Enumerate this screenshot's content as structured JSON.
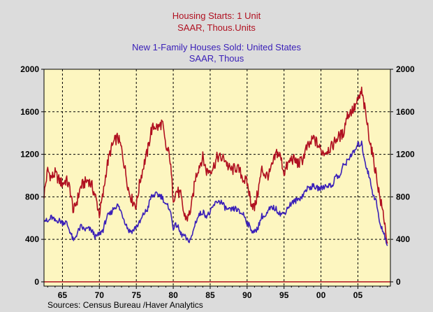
{
  "chart_data": {
    "type": "line",
    "titles": [
      {
        "text": "Housing Starts: 1 Unit",
        "color": "#b01020"
      },
      {
        "text": "SAAR, Thous.Units",
        "color": "#b01020"
      },
      {
        "text": "New 1-Family Houses Sold: United States",
        "color": "#3a20b8"
      },
      {
        "text": "SAAR, Thous",
        "color": "#3a20b8"
      }
    ],
    "xlabel": "",
    "ylabel": "",
    "xlim": [
      1962.5,
      2009.4
    ],
    "ylim": [
      -40,
      2000
    ],
    "x_ticks": [
      "65",
      "70",
      "75",
      "80",
      "85",
      "90",
      "95",
      "00",
      "05"
    ],
    "x_tick_values": [
      1965,
      1970,
      1975,
      1980,
      1985,
      1990,
      1995,
      2000,
      2005
    ],
    "y_ticks_left": [
      "0",
      "400",
      "800",
      "1200",
      "1600",
      "2000"
    ],
    "y_ticks_right": [
      "0",
      "400",
      "800",
      "1200",
      "1600",
      "2000"
    ],
    "y_tick_values": [
      0,
      400,
      800,
      1200,
      1600,
      2000
    ],
    "grid": true,
    "plot_background": "#fdf6c0",
    "series": [
      {
        "color": "#b01020",
        "points": [
          [
            1962.5,
            820
          ],
          [
            1963,
            1050
          ],
          [
            1963.5,
            980
          ],
          [
            1964,
            1020
          ],
          [
            1964.5,
            960
          ],
          [
            1965,
            920
          ],
          [
            1965.5,
            960
          ],
          [
            1966,
            880
          ],
          [
            1966.5,
            660
          ],
          [
            1967,
            770
          ],
          [
            1967.5,
            900
          ],
          [
            1968,
            930
          ],
          [
            1968.5,
            960
          ],
          [
            1969,
            900
          ],
          [
            1969.5,
            790
          ],
          [
            1970,
            640
          ],
          [
            1970.5,
            820
          ],
          [
            1971,
            1080
          ],
          [
            1971.5,
            1230
          ],
          [
            1972,
            1320
          ],
          [
            1972.5,
            1360
          ],
          [
            1973,
            1250
          ],
          [
            1973.5,
            1050
          ],
          [
            1974,
            850
          ],
          [
            1974.5,
            760
          ],
          [
            1975,
            720
          ],
          [
            1975.5,
            950
          ],
          [
            1976,
            1100
          ],
          [
            1976.5,
            1220
          ],
          [
            1977,
            1420
          ],
          [
            1977.5,
            1470
          ],
          [
            1978,
            1450
          ],
          [
            1978.5,
            1500
          ],
          [
            1979,
            1260
          ],
          [
            1979.5,
            1200
          ],
          [
            1980,
            790
          ],
          [
            1980.5,
            860
          ],
          [
            1981,
            810
          ],
          [
            1981.5,
            620
          ],
          [
            1982,
            600
          ],
          [
            1982.5,
            720
          ],
          [
            1983,
            980
          ],
          [
            1983.5,
            1090
          ],
          [
            1984,
            1170
          ],
          [
            1984.5,
            1040
          ],
          [
            1985,
            1050
          ],
          [
            1985.5,
            1090
          ],
          [
            1986,
            1180
          ],
          [
            1986.5,
            1160
          ],
          [
            1987,
            1160
          ],
          [
            1987.5,
            1070
          ],
          [
            1988,
            1050
          ],
          [
            1988.5,
            1080
          ],
          [
            1989,
            1040
          ],
          [
            1989.5,
            970
          ],
          [
            1990,
            930
          ],
          [
            1990.5,
            760
          ],
          [
            1991,
            690
          ],
          [
            1991.5,
            860
          ],
          [
            1992,
            1060
          ],
          [
            1992.5,
            1000
          ],
          [
            1993,
            1010
          ],
          [
            1993.5,
            1110
          ],
          [
            1994,
            1220
          ],
          [
            1994.5,
            1180
          ],
          [
            1995,
            1030
          ],
          [
            1995.5,
            1100
          ],
          [
            1996,
            1160
          ],
          [
            1996.5,
            1140
          ],
          [
            1997,
            1110
          ],
          [
            1997.5,
            1150
          ],
          [
            1998,
            1250
          ],
          [
            1998.5,
            1290
          ],
          [
            1999,
            1350
          ],
          [
            1999.5,
            1300
          ],
          [
            2000,
            1230
          ],
          [
            2000.5,
            1220
          ],
          [
            2001,
            1250
          ],
          [
            2001.5,
            1270
          ],
          [
            2002,
            1340
          ],
          [
            2002.5,
            1370
          ],
          [
            2003,
            1390
          ],
          [
            2003.5,
            1560
          ],
          [
            2004,
            1600
          ],
          [
            2004.5,
            1630
          ],
          [
            2005,
            1700
          ],
          [
            2005.5,
            1790
          ],
          [
            2006,
            1600
          ],
          [
            2006.5,
            1380
          ],
          [
            2007,
            1190
          ],
          [
            2007.5,
            1000
          ],
          [
            2008,
            780
          ],
          [
            2008.5,
            620
          ],
          [
            2009,
            360
          ]
        ]
      },
      {
        "color": "#3a20b8",
        "points": [
          [
            1962.5,
            600
          ],
          [
            1963,
            560
          ],
          [
            1963.5,
            610
          ],
          [
            1964,
            570
          ],
          [
            1964.5,
            580
          ],
          [
            1965,
            560
          ],
          [
            1965.5,
            560
          ],
          [
            1966,
            480
          ],
          [
            1966.5,
            380
          ],
          [
            1967,
            460
          ],
          [
            1967.5,
            520
          ],
          [
            1968,
            490
          ],
          [
            1968.5,
            500
          ],
          [
            1969,
            480
          ],
          [
            1969.5,
            420
          ],
          [
            1970,
            450
          ],
          [
            1970.5,
            490
          ],
          [
            1971,
            610
          ],
          [
            1971.5,
            640
          ],
          [
            1972,
            700
          ],
          [
            1972.5,
            720
          ],
          [
            1973,
            650
          ],
          [
            1973.5,
            560
          ],
          [
            1974,
            480
          ],
          [
            1974.5,
            480
          ],
          [
            1975,
            520
          ],
          [
            1975.5,
            560
          ],
          [
            1976,
            640
          ],
          [
            1976.5,
            680
          ],
          [
            1977,
            800
          ],
          [
            1977.5,
            820
          ],
          [
            1978,
            820
          ],
          [
            1978.5,
            800
          ],
          [
            1979,
            720
          ],
          [
            1979.5,
            700
          ],
          [
            1980,
            510
          ],
          [
            1980.5,
            540
          ],
          [
            1981,
            450
          ],
          [
            1981.5,
            430
          ],
          [
            1982,
            380
          ],
          [
            1982.5,
            420
          ],
          [
            1983,
            560
          ],
          [
            1983.5,
            630
          ],
          [
            1984,
            660
          ],
          [
            1984.5,
            620
          ],
          [
            1985,
            650
          ],
          [
            1985.5,
            720
          ],
          [
            1986,
            760
          ],
          [
            1986.5,
            750
          ],
          [
            1987,
            700
          ],
          [
            1987.5,
            670
          ],
          [
            1988,
            680
          ],
          [
            1988.5,
            690
          ],
          [
            1989,
            650
          ],
          [
            1989.5,
            640
          ],
          [
            1990,
            560
          ],
          [
            1990.5,
            500
          ],
          [
            1991,
            460
          ],
          [
            1991.5,
            520
          ],
          [
            1992,
            620
          ],
          [
            1992.5,
            610
          ],
          [
            1993,
            680
          ],
          [
            1993.5,
            700
          ],
          [
            1994,
            680
          ],
          [
            1994.5,
            640
          ],
          [
            1995,
            640
          ],
          [
            1995.5,
            700
          ],
          [
            1996,
            740
          ],
          [
            1996.5,
            760
          ],
          [
            1997,
            780
          ],
          [
            1997.5,
            810
          ],
          [
            1998,
            870
          ],
          [
            1998.5,
            890
          ],
          [
            1999,
            900
          ],
          [
            1999.5,
            880
          ],
          [
            2000,
            880
          ],
          [
            2000.5,
            900
          ],
          [
            2001,
            910
          ],
          [
            2001.5,
            900
          ],
          [
            2002,
            1000
          ],
          [
            2002.5,
            980
          ],
          [
            2003,
            1090
          ],
          [
            2003.5,
            1130
          ],
          [
            2004,
            1190
          ],
          [
            2004.5,
            1220
          ],
          [
            2005,
            1290
          ],
          [
            2005.5,
            1300
          ],
          [
            2006,
            1120
          ],
          [
            2006.5,
            1000
          ],
          [
            2007,
            840
          ],
          [
            2007.5,
            750
          ],
          [
            2008,
            530
          ],
          [
            2008.5,
            470
          ],
          [
            2009,
            340
          ]
        ]
      }
    ],
    "source": "Sources:  Census Bureau /Haver Analytics"
  }
}
